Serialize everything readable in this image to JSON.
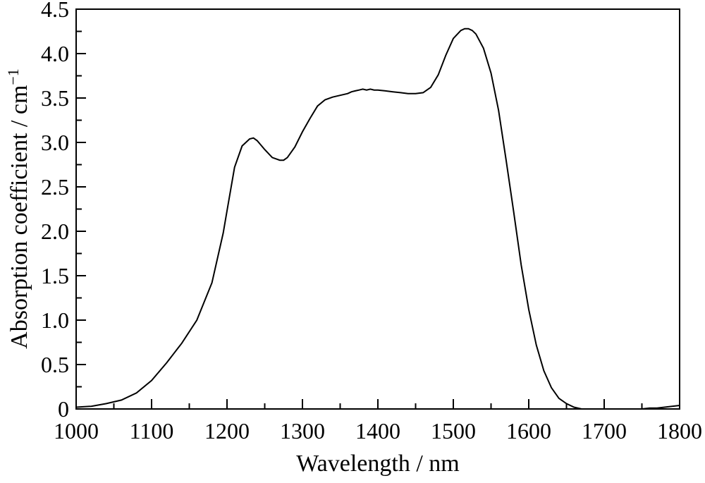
{
  "chart_data": {
    "type": "line",
    "title": "",
    "xlabel": "Wavelength / nm",
    "ylabel": {
      "text": "Absorption coefficient / cm",
      "superscript": "−1"
    },
    "xlim": [
      1000,
      1800
    ],
    "ylim": [
      0,
      4.5
    ],
    "x_ticks": [
      1000,
      1100,
      1200,
      1300,
      1400,
      1500,
      1600,
      1700,
      1800
    ],
    "x_tick_labels": [
      "1000",
      "1100",
      "1200",
      "1300",
      "1400",
      "1500",
      "1600",
      "1700",
      "1800"
    ],
    "y_ticks": [
      0,
      0.5,
      1.0,
      1.5,
      2.0,
      2.5,
      3.0,
      3.5,
      4.0,
      4.5
    ],
    "y_tick_labels": [
      "0",
      "0.5",
      "1.0",
      "1.5",
      "2.0",
      "2.5",
      "3.0",
      "3.5",
      "4.0",
      "4.5"
    ],
    "grid": false,
    "legend": "none",
    "line_color": "#000000",
    "series": [
      {
        "x": [
          1000,
          1020,
          1040,
          1060,
          1080,
          1100,
          1120,
          1140,
          1160,
          1180,
          1195,
          1200,
          1210,
          1220,
          1230,
          1235,
          1240,
          1250,
          1260,
          1270,
          1275,
          1280,
          1290,
          1300,
          1310,
          1320,
          1330,
          1340,
          1350,
          1360,
          1365,
          1370,
          1375,
          1380,
          1385,
          1390,
          1395,
          1400,
          1410,
          1420,
          1430,
          1440,
          1450,
          1460,
          1470,
          1480,
          1490,
          1500,
          1510,
          1515,
          1520,
          1525,
          1530,
          1540,
          1550,
          1560,
          1570,
          1580,
          1590,
          1600,
          1610,
          1620,
          1630,
          1640,
          1650,
          1660,
          1670,
          1680,
          1690,
          1700,
          1710,
          1720,
          1730,
          1740,
          1750,
          1760,
          1770,
          1780,
          1790,
          1800
        ],
        "y": [
          0.02,
          0.03,
          0.06,
          0.1,
          0.18,
          0.32,
          0.52,
          0.74,
          1.0,
          1.42,
          1.98,
          2.23,
          2.72,
          2.96,
          3.04,
          3.05,
          3.02,
          2.92,
          2.83,
          2.8,
          2.8,
          2.83,
          2.95,
          3.12,
          3.27,
          3.41,
          3.48,
          3.51,
          3.53,
          3.55,
          3.57,
          3.58,
          3.59,
          3.6,
          3.59,
          3.6,
          3.59,
          3.59,
          3.58,
          3.57,
          3.56,
          3.55,
          3.55,
          3.56,
          3.62,
          3.76,
          3.98,
          4.17,
          4.26,
          4.28,
          4.28,
          4.26,
          4.22,
          4.06,
          3.78,
          3.36,
          2.8,
          2.22,
          1.62,
          1.12,
          0.72,
          0.43,
          0.24,
          0.12,
          0.06,
          0.02,
          0.0,
          0.0,
          0.0,
          0.0,
          0.0,
          0.0,
          0.0,
          0.0,
          0.0,
          0.01,
          0.01,
          0.02,
          0.03,
          0.04
        ]
      }
    ]
  }
}
